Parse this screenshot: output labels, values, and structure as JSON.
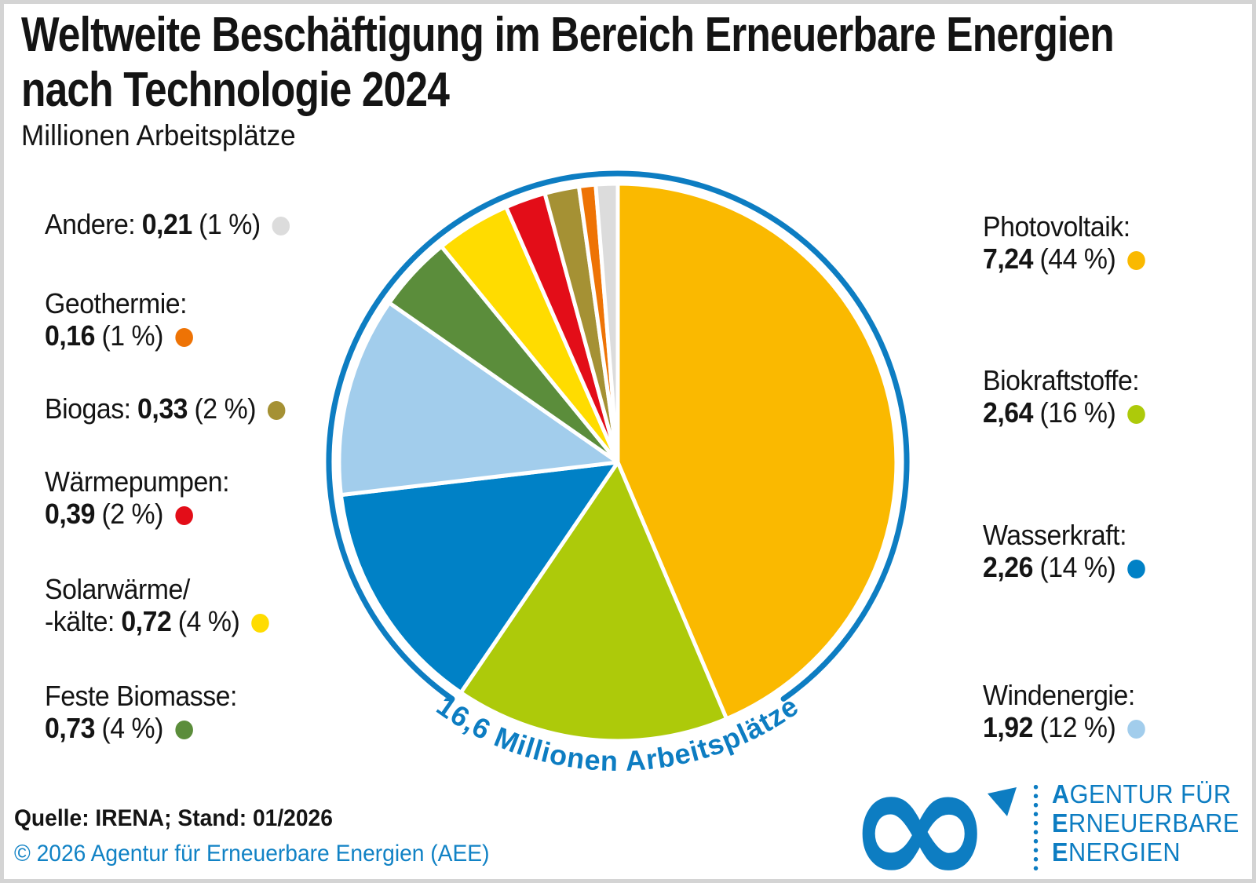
{
  "header": {
    "title_line1": "Weltweite Beschäftigung im Bereich Erneuerbare Energien",
    "title_line2": "nach Technologie 2024",
    "subtitle": "Millionen Arbeitsplätze"
  },
  "chart_data": {
    "type": "pie",
    "title": "Weltweite Beschäftigung im Bereich Erneuerbare Energien nach Technologie 2024",
    "unit": "Millionen Arbeitsplätze",
    "total_value": 16.6,
    "center_label": "16,6 Millionen Arbeitsplätze",
    "start_angle_deg": 0,
    "direction": "clockwise",
    "ring_color": "#0d7dc2",
    "legend_position": "left-and-right of pie",
    "segments": [
      {
        "name": "Photovoltaik",
        "value": 7.24,
        "value_label": "7,24",
        "percent": 44,
        "percent_label": "(44 %)",
        "color": "#fab900",
        "legend_name": "Photovoltaik:"
      },
      {
        "name": "Biokraftstoffe",
        "value": 2.64,
        "value_label": "2,64",
        "percent": 16,
        "percent_label": "(16 %)",
        "color": "#adca0a",
        "legend_name": "Biokraftstoffe:"
      },
      {
        "name": "Wasserkraft",
        "value": 2.26,
        "value_label": "2,26",
        "percent": 14,
        "percent_label": "(14 %)",
        "color": "#0081c6",
        "legend_name": "Wasserkraft:"
      },
      {
        "name": "Windenergie",
        "value": 1.92,
        "value_label": "1,92",
        "percent": 12,
        "percent_label": "(12 %)",
        "color": "#a2cdec",
        "legend_name": "Windenergie:"
      },
      {
        "name": "Feste Biomasse",
        "value": 0.73,
        "value_label": "0,73",
        "percent": 4,
        "percent_label": "(4 %)",
        "color": "#5b8d3b",
        "legend_name": "Feste Biomasse:"
      },
      {
        "name": "Solarwärme/-kälte",
        "value": 0.72,
        "value_label": "0,72",
        "percent": 4,
        "percent_label": "(4 %)",
        "color": "#ffdc00",
        "legend_name": "Solarwärme/",
        "legend_name2": "-kälte:"
      },
      {
        "name": "Wärmepumpen",
        "value": 0.39,
        "value_label": "0,39",
        "percent": 2,
        "percent_label": "(2 %)",
        "color": "#e30d18",
        "legend_name": "Wärmepumpen:"
      },
      {
        "name": "Biogas",
        "value": 0.33,
        "value_label": "0,33",
        "percent": 2,
        "percent_label": "(2 %)",
        "color": "#a59134",
        "legend_name": "Biogas:"
      },
      {
        "name": "Geothermie",
        "value": 0.16,
        "value_label": "0,16",
        "percent": 1,
        "percent_label": "(1 %)",
        "color": "#ee7305",
        "legend_name": "Geothermie:"
      },
      {
        "name": "Andere",
        "value": 0.21,
        "value_label": "0,21",
        "percent": 1,
        "percent_label": "(1 %)",
        "color": "#dcdcdc",
        "legend_name": "Andere:"
      }
    ]
  },
  "footer": {
    "source": "Quelle: IRENA; Stand: 01/2026",
    "copyright": "© 2026 Agentur für Erneuerbare Energien (AEE)"
  },
  "logo": {
    "infinity_glyph": "∞",
    "lines": [
      {
        "bold": "A",
        "rest": "GENTUR FÜR"
      },
      {
        "bold": "E",
        "rest": "RNEUERBARE"
      },
      {
        "bold": "E",
        "rest": "NERGIEN"
      }
    ]
  }
}
